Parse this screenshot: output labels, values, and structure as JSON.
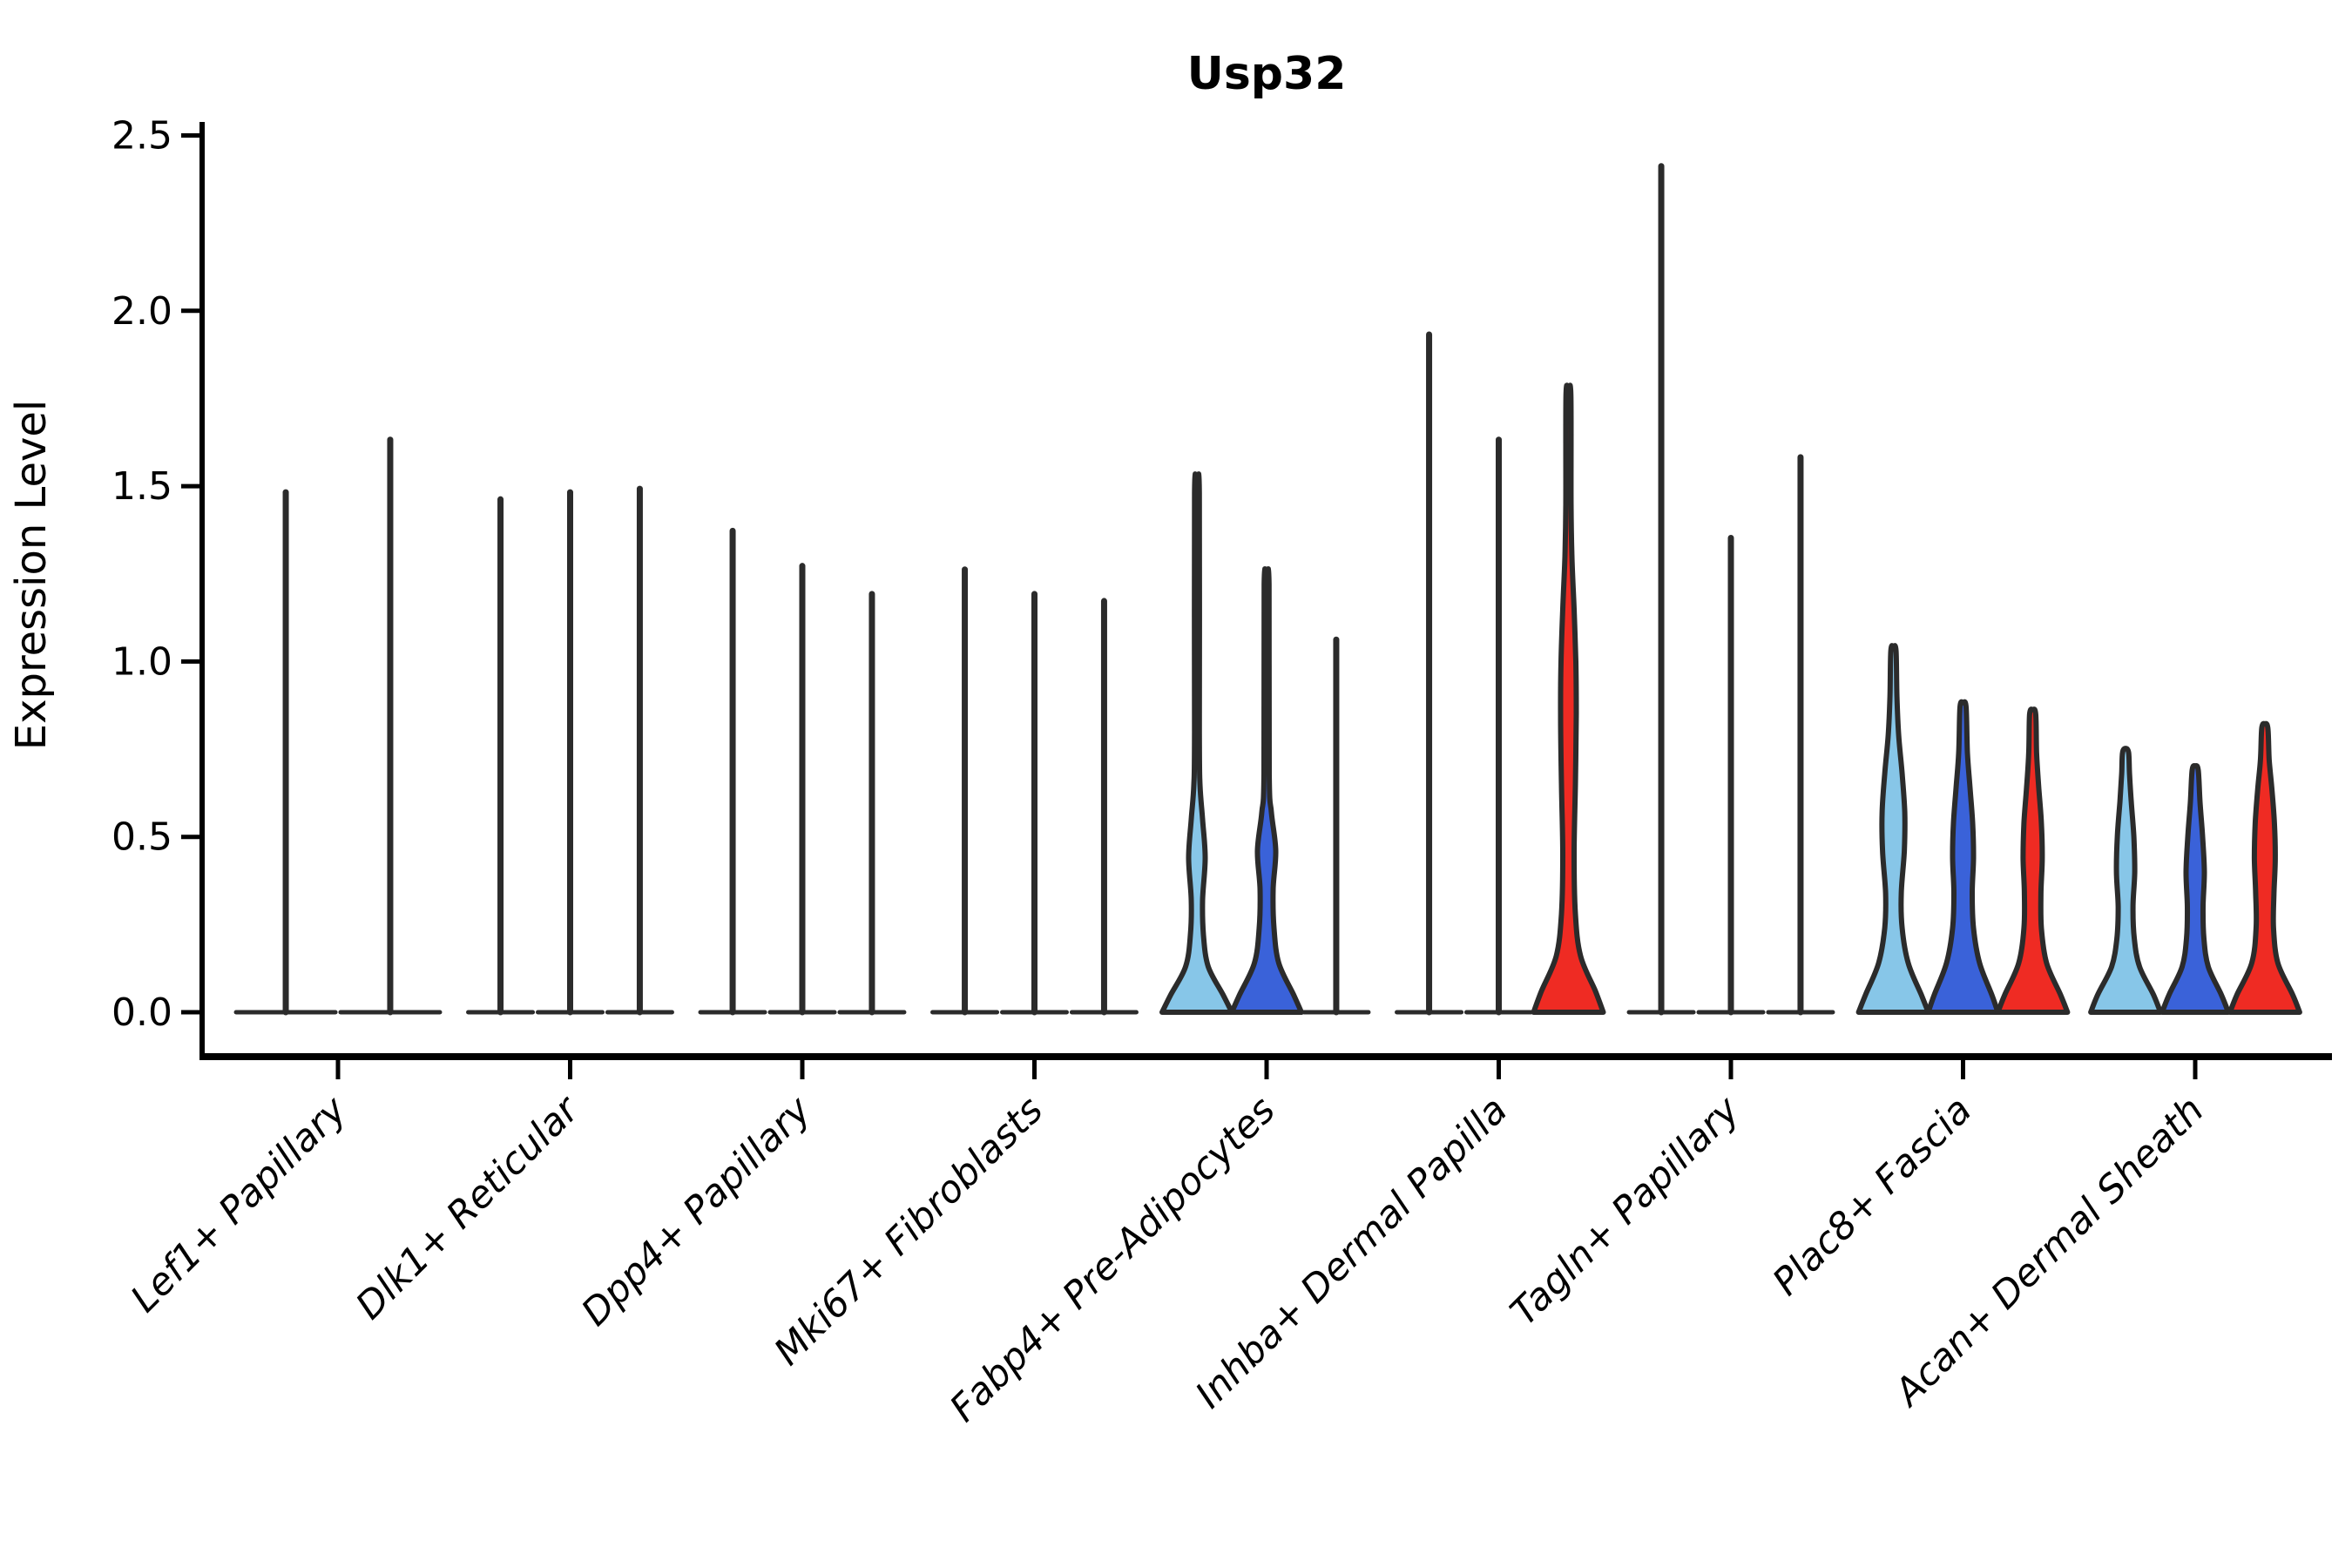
{
  "chart_data": {
    "type": "violin",
    "title": "Usp32",
    "ylabel": "Expression Level",
    "xlabel": "",
    "ylim": [
      0.0,
      2.5
    ],
    "yticks": [
      0.0,
      0.5,
      1.0,
      1.5,
      2.0,
      2.5
    ],
    "ytick_labels": [
      "0.0",
      "0.5",
      "1.0",
      "1.5",
      "2.0",
      "2.5"
    ],
    "grid": false,
    "legend": "none",
    "axis_color": "#000000",
    "outline_color": "#2B2B2B",
    "hue_colors": {
      "lightblue": "#87C6E8",
      "darkblue": "#3A62D9",
      "red": "#EF2B23",
      "neutral": "#FFFFFF"
    },
    "categories": [
      "Lef1+ Papillary",
      "Dlk1+ Reticular",
      "Dpp4+ Papillary",
      "Mki67+ Fibroblasts",
      "Fabp4+ Pre-Adipocytes",
      "Inhba+ Dermal Papilla",
      "Tagln+ Papillary",
      "Plac8+ Fascia",
      "Acan+ Dermal Sheath"
    ],
    "groups": [
      {
        "category": "Lef1+ Papillary",
        "violins": [
          {
            "hue": "neutral",
            "style": "spike",
            "max": 1.49,
            "offset": -0.225,
            "base_half": 60
          },
          {
            "hue": "neutral",
            "style": "spike",
            "max": 1.64,
            "offset": 0.225,
            "base_half": 60
          }
        ]
      },
      {
        "category": "Dlk1+ Reticular",
        "violins": [
          {
            "hue": "neutral",
            "style": "spike",
            "max": 1.47,
            "offset": -0.3,
            "base_half": 40
          },
          {
            "hue": "neutral",
            "style": "spike",
            "max": 1.49,
            "offset": 0.0,
            "base_half": 40
          },
          {
            "hue": "neutral",
            "style": "spike",
            "max": 1.5,
            "offset": 0.3,
            "base_half": 40
          }
        ]
      },
      {
        "category": "Dpp4+ Papillary",
        "violins": [
          {
            "hue": "neutral",
            "style": "spike",
            "max": 1.38,
            "offset": -0.3,
            "base_half": 40
          },
          {
            "hue": "neutral",
            "style": "spike",
            "max": 1.28,
            "offset": 0.0,
            "base_half": 40
          },
          {
            "hue": "neutral",
            "style": "spike",
            "max": 1.2,
            "offset": 0.3,
            "base_half": 40
          }
        ]
      },
      {
        "category": "Mki67+ Fibroblasts",
        "violins": [
          {
            "hue": "neutral",
            "style": "spike",
            "max": 1.27,
            "offset": -0.3,
            "base_half": 40
          },
          {
            "hue": "neutral",
            "style": "spike",
            "max": 1.2,
            "offset": 0.0,
            "base_half": 40
          },
          {
            "hue": "neutral",
            "style": "spike",
            "max": 1.18,
            "offset": 0.3,
            "base_half": 40
          }
        ]
      },
      {
        "category": "Fabp4+ Pre-Adipocytes",
        "violins": [
          {
            "hue": "lightblue",
            "style": "body",
            "max": 1.48,
            "offset": -0.3,
            "profile": [
              [
                0,
                40
              ],
              [
                0.05,
                30
              ],
              [
                0.13,
                13
              ],
              [
                0.22,
                7.5
              ],
              [
                0.32,
                6.5
              ],
              [
                0.44,
                9.5
              ],
              [
                0.55,
                6.5
              ],
              [
                0.65,
                3.5
              ],
              [
                0.8,
                2.8
              ],
              [
                1.48,
                2.8
              ]
            ]
          },
          {
            "hue": "darkblue",
            "style": "body",
            "max": 1.22,
            "offset": 0.0,
            "profile": [
              [
                0,
                40
              ],
              [
                0.05,
                31
              ],
              [
                0.14,
                14
              ],
              [
                0.24,
                8.5
              ],
              [
                0.35,
                7.5
              ],
              [
                0.46,
                10.5
              ],
              [
                0.57,
                5.5
              ],
              [
                0.68,
                3.0
              ],
              [
                1.22,
                2.8
              ]
            ]
          },
          {
            "hue": "neutral",
            "style": "spike",
            "max": 1.07,
            "offset": 0.3,
            "base_half": 40
          }
        ]
      },
      {
        "category": "Inhba+ Dermal Papilla",
        "violins": [
          {
            "hue": "neutral",
            "style": "spike",
            "max": 1.94,
            "offset": -0.3,
            "base_half": 40
          },
          {
            "hue": "neutral",
            "style": "spike",
            "max": 1.64,
            "offset": 0.0,
            "base_half": 40
          },
          {
            "hue": "red",
            "style": "body",
            "max": 1.76,
            "offset": 0.3,
            "profile": [
              [
                0,
                40
              ],
              [
                0.06,
                31
              ],
              [
                0.16,
                14
              ],
              [
                0.28,
                8
              ],
              [
                0.45,
                6.5
              ],
              [
                0.65,
                8
              ],
              [
                0.85,
                9
              ],
              [
                1.0,
                8.5
              ],
              [
                1.15,
                6.5
              ],
              [
                1.3,
                4
              ],
              [
                1.45,
                3
              ],
              [
                1.76,
                2.8
              ]
            ]
          }
        ]
      },
      {
        "category": "Tagln+ Papillary",
        "violins": [
          {
            "hue": "neutral",
            "style": "spike",
            "max": 2.42,
            "offset": -0.3,
            "base_half": 40
          },
          {
            "hue": "neutral",
            "style": "spike",
            "max": 1.36,
            "offset": 0.0,
            "base_half": 40
          },
          {
            "hue": "neutral",
            "style": "spike",
            "max": 1.59,
            "offset": 0.3,
            "base_half": 40
          }
        ]
      },
      {
        "category": "Plac8+ Fascia",
        "violins": [
          {
            "hue": "lightblue",
            "style": "body",
            "max": 1.03,
            "offset": -0.3,
            "profile": [
              [
                0,
                40
              ],
              [
                0.05,
                32
              ],
              [
                0.14,
                17
              ],
              [
                0.24,
                10
              ],
              [
                0.34,
                9
              ],
              [
                0.46,
                12.5
              ],
              [
                0.57,
                13
              ],
              [
                0.68,
                10
              ],
              [
                0.79,
                6
              ],
              [
                0.9,
                4
              ],
              [
                1.03,
                3
              ]
            ]
          },
          {
            "hue": "darkblue",
            "style": "body",
            "max": 0.87,
            "offset": 0.0,
            "profile": [
              [
                0,
                40
              ],
              [
                0.05,
                33
              ],
              [
                0.14,
                19
              ],
              [
                0.24,
                12
              ],
              [
                0.34,
                10.5
              ],
              [
                0.44,
                12
              ],
              [
                0.54,
                11
              ],
              [
                0.64,
                8
              ],
              [
                0.74,
                5
              ],
              [
                0.87,
                3.5
              ]
            ]
          },
          {
            "hue": "red",
            "style": "body",
            "max": 0.85,
            "offset": 0.3,
            "profile": [
              [
                0,
                40
              ],
              [
                0.05,
                32
              ],
              [
                0.14,
                16
              ],
              [
                0.24,
                10
              ],
              [
                0.34,
                9.5
              ],
              [
                0.44,
                11
              ],
              [
                0.54,
                10
              ],
              [
                0.64,
                7
              ],
              [
                0.74,
                4.5
              ],
              [
                0.85,
                3.5
              ]
            ]
          }
        ]
      },
      {
        "category": "Acan+ Dermal Sheath",
        "violins": [
          {
            "hue": "lightblue",
            "style": "body",
            "max": 0.74,
            "offset": -0.3,
            "profile": [
              [
                0,
                40
              ],
              [
                0.05,
                32
              ],
              [
                0.13,
                16
              ],
              [
                0.21,
                10
              ],
              [
                0.3,
                8.5
              ],
              [
                0.4,
                10.5
              ],
              [
                0.5,
                9.5
              ],
              [
                0.6,
                6.5
              ],
              [
                0.68,
                4.5
              ],
              [
                0.74,
                3.5
              ]
            ]
          },
          {
            "hue": "darkblue",
            "style": "body",
            "max": 0.69,
            "offset": 0.0,
            "profile": [
              [
                0,
                38
              ],
              [
                0.05,
                30
              ],
              [
                0.13,
                15
              ],
              [
                0.21,
                10
              ],
              [
                0.3,
                9
              ],
              [
                0.4,
                10.5
              ],
              [
                0.5,
                8.5
              ],
              [
                0.6,
                5.5
              ],
              [
                0.69,
                3.5
              ]
            ]
          },
          {
            "hue": "red",
            "style": "body",
            "max": 0.81,
            "offset": 0.3,
            "profile": [
              [
                0,
                40
              ],
              [
                0.05,
                32
              ],
              [
                0.14,
                15
              ],
              [
                0.24,
                10
              ],
              [
                0.34,
                10.5
              ],
              [
                0.44,
                12
              ],
              [
                0.54,
                11
              ],
              [
                0.64,
                8
              ],
              [
                0.72,
                5
              ],
              [
                0.81,
                3.5
              ]
            ]
          }
        ]
      }
    ]
  }
}
